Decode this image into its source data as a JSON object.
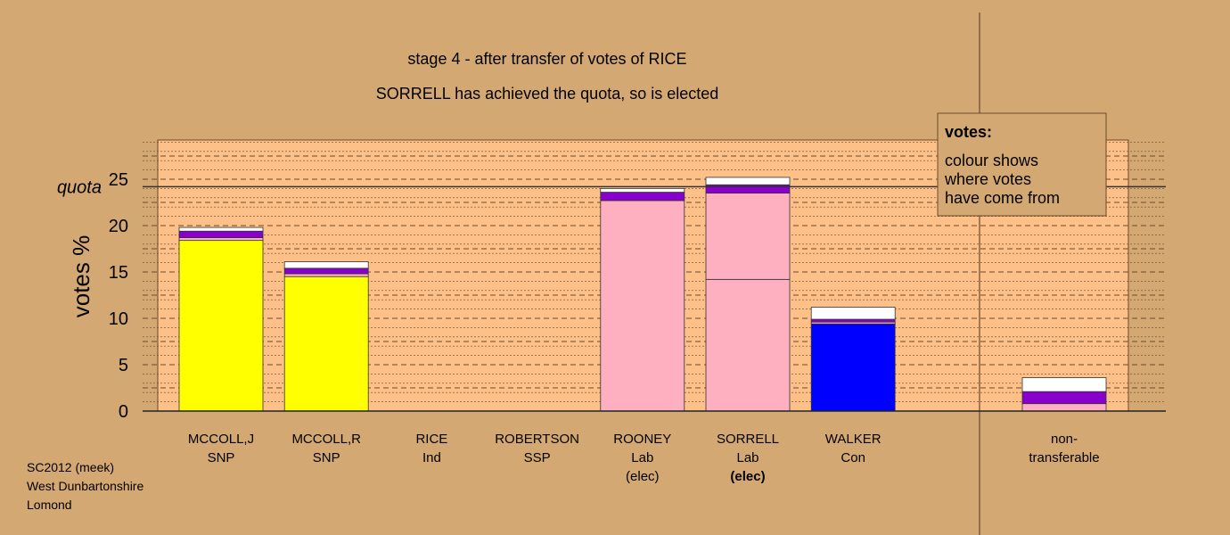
{
  "chart_data": {
    "type": "bar",
    "stacked": true,
    "title": "stage 4 - after transfer of votes of RICE",
    "subtitle": "SORRELL has achieved the quota, so is elected",
    "ylabel": "votes %",
    "ylim": [
      0,
      29
    ],
    "yticks": [
      0,
      5,
      10,
      15,
      20,
      25
    ],
    "quota": 24.2,
    "quota_label": "quota",
    "grid": "dashed horizontal",
    "colors": {
      "background": "#d4a873",
      "plot_bg": "#fdc088",
      "snp": "#ffff00",
      "lab": "#ffb0c0",
      "con": "#0000ff",
      "transfer_purple": "#8800cc",
      "transfer_white": "#ffffff"
    },
    "categories": [
      {
        "line1": "MCCOLL,J",
        "line2": "SNP",
        "line3": "",
        "line3_bold": false
      },
      {
        "line1": "MCCOLL,R",
        "line2": "SNP",
        "line3": "",
        "line3_bold": false
      },
      {
        "line1": "RICE",
        "line2": "Ind",
        "line3": "",
        "line3_bold": false
      },
      {
        "line1": "ROBERTSON",
        "line2": "SSP",
        "line3": "",
        "line3_bold": false
      },
      {
        "line1": "ROONEY",
        "line2": "Lab",
        "line3": "(elec)",
        "line3_bold": false
      },
      {
        "line1": "SORRELL",
        "line2": "Lab",
        "line3": "(elec)",
        "line3_bold": true
      },
      {
        "line1": "WALKER",
        "line2": "Con",
        "line3": "",
        "line3_bold": false
      }
    ],
    "bars": [
      [
        {
          "value": 18.4,
          "color": "#ffff00"
        },
        {
          "value": 0.3,
          "color": "#ffb0c0"
        },
        {
          "value": 0.7,
          "color": "#8800cc"
        },
        {
          "value": 0.4,
          "color": "#ffffff"
        }
      ],
      [
        {
          "value": 14.5,
          "color": "#ffff00"
        },
        {
          "value": 0.3,
          "color": "#ffb0c0"
        },
        {
          "value": 0.6,
          "color": "#8800cc"
        },
        {
          "value": 0.7,
          "color": "#ffffff"
        }
      ],
      [],
      [],
      [
        {
          "value": 22.7,
          "color": "#ffb0c0"
        },
        {
          "value": 0.9,
          "color": "#8800cc"
        },
        {
          "value": 0.4,
          "color": "#ffffff"
        }
      ],
      [
        {
          "value": 14.2,
          "color": "#ffb0c0"
        },
        {
          "value": 9.3,
          "color": "#ffb0c0"
        },
        {
          "value": 0.9,
          "color": "#8800cc"
        },
        {
          "value": 0.8,
          "color": "#ffffff"
        }
      ],
      [
        {
          "value": 9.4,
          "color": "#0000ff"
        },
        {
          "value": 0.2,
          "color": "#ffb0c0"
        },
        {
          "value": 0.3,
          "color": "#8800cc"
        },
        {
          "value": 1.3,
          "color": "#ffffff"
        }
      ]
    ],
    "nontransferable": {
      "line1": "non-",
      "line2": "transferable",
      "segments": [
        {
          "value": 0.8,
          "color": "#ffb0c0"
        },
        {
          "value": 1.3,
          "color": "#8800cc"
        },
        {
          "value": 1.5,
          "color": "#ffffff"
        }
      ]
    },
    "legend": {
      "title": "votes:",
      "lines": [
        "colour shows",
        "where votes",
        "have come from"
      ],
      "placement": "top-right"
    }
  },
  "footer": {
    "lines": [
      "SC2012 (meek)",
      "West Dunbartonshire",
      "Lomond"
    ]
  }
}
